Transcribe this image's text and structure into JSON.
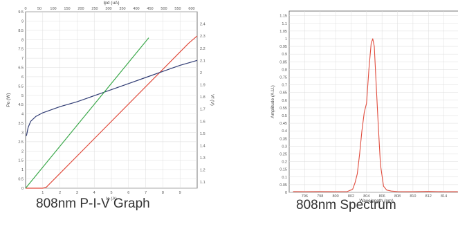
{
  "chart_data": [
    {
      "type": "line",
      "title": "",
      "xlabel": "Io (A)",
      "ylabel": "Po (W)",
      "y2label": "Vf (V)",
      "x2label": "Ipd (uA)",
      "xlim": [
        0,
        10
      ],
      "ylim": [
        0,
        9.5
      ],
      "y2lim": [
        1.05,
        2.5
      ],
      "x2lim": [
        0,
        620
      ],
      "x_ticks": [
        "1",
        "2",
        "3",
        "4",
        "5",
        "6",
        "7",
        "8",
        "9"
      ],
      "y_ticks": [
        "0",
        "0.5",
        "1",
        "1.5",
        "2",
        "2.5",
        "3",
        "3.5",
        "4",
        "4.5",
        "5",
        "5.5",
        "6",
        "6.5",
        "7",
        "7.5",
        "8",
        "8.5",
        "9",
        "9.5"
      ],
      "y2_ticks": [
        "1.1",
        "1.2",
        "1.3",
        "1.4",
        "1.5",
        "1.6",
        "1.7",
        "1.8",
        "1.9",
        "2",
        "2.1",
        "2.2",
        "2.3",
        "2.4"
      ],
      "x2_ticks": [
        "0",
        "50",
        "100",
        "150",
        "200",
        "250",
        "300",
        "350",
        "400",
        "450",
        "500",
        "550",
        "600"
      ],
      "grid": true,
      "series": [
        {
          "color": "#e04b3c",
          "axis": "x-y",
          "x": [
            0,
            1.0,
            1.2,
            9.5,
            10.0
          ],
          "y": [
            0,
            0,
            0.05,
            7.8,
            8.2
          ]
        },
        {
          "color": "#2f3b73",
          "axis": "x-y2",
          "x": [
            0.05,
            0.15,
            0.3,
            0.6,
            1.0,
            2.0,
            3.0,
            4.0,
            5.0,
            6.0,
            7.0,
            8.0,
            9.0,
            10.0
          ],
          "y": [
            1.48,
            1.55,
            1.6,
            1.64,
            1.67,
            1.72,
            1.76,
            1.81,
            1.86,
            1.91,
            1.96,
            2.01,
            2.06,
            2.1
          ]
        },
        {
          "color": "#3aa84a",
          "axis": "x2-y",
          "x": [
            0,
            445
          ],
          "y": [
            0,
            8.1
          ]
        }
      ]
    },
    {
      "type": "line",
      "title": "",
      "xlabel": "Wavelength (nm)",
      "ylabel": "Amplitude (A.U.)",
      "xlim": [
        794,
        816
      ],
      "ylim": [
        0,
        1.18
      ],
      "x_ticks": [
        "796",
        "798",
        "800",
        "802",
        "804",
        "806",
        "808",
        "810",
        "812",
        "814"
      ],
      "y_ticks": [
        "0",
        "0.05",
        "0.1",
        "0.15",
        "0.2",
        "0.25",
        "0.3",
        "0.35",
        "0.4",
        "0.45",
        "0.5",
        "0.55",
        "0.6",
        "0.65",
        "0.7",
        "0.75",
        "0.8",
        "0.85",
        "0.9",
        "0.95",
        "1",
        "1.05",
        "1.1",
        "1.15"
      ],
      "grid": true,
      "series": [
        {
          "color": "#e04b3c",
          "x": [
            794.5,
            796,
            798,
            800,
            801.5,
            802.2,
            802.5,
            802.8,
            803.1,
            803.4,
            803.7,
            804.0,
            804.3,
            804.6,
            804.8,
            805.0,
            805.2,
            805.5,
            805.8,
            806.2,
            806.6,
            807.2,
            808,
            810,
            812,
            814,
            815.8
          ],
          "y": [
            0.005,
            0.004,
            0.005,
            0.004,
            0.005,
            0.02,
            0.06,
            0.12,
            0.25,
            0.4,
            0.52,
            0.58,
            0.8,
            0.97,
            1.0,
            0.95,
            0.75,
            0.45,
            0.18,
            0.04,
            0.015,
            0.008,
            0.005,
            0.004,
            0.006,
            0.004,
            0.004
          ]
        }
      ]
    }
  ],
  "captions": {
    "left": "808nm P-I-V Graph",
    "right": "808nm Spectrum"
  }
}
